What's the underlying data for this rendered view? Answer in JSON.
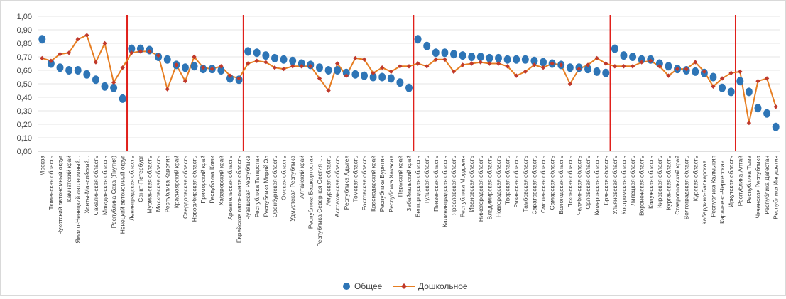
{
  "chart_data": {
    "type": "line",
    "title": "",
    "xlabel": "",
    "ylabel": "",
    "ylim": [
      0,
      1
    ],
    "yticks": [
      "0,00",
      "0,10",
      "0,20",
      "0,30",
      "0,40",
      "0,50",
      "0,60",
      "0,70",
      "0,80",
      "0,90",
      "1,00"
    ],
    "grid": true,
    "legend_position": "bottom",
    "categories": [
      "Москва",
      "Тюменская область",
      "Чукотский автономный округ",
      "Камчатский край",
      "Ямало-Ненецкий автономный...",
      "Ханты-Мансийский...",
      "Сахалинская область",
      "Магаданская область",
      "Республика Саха (Якутия)",
      "Ненецкий автономный округ",
      "Ленинградская область",
      "Санкт-Петербург",
      "Мурманская область",
      "Московская область",
      "Республика Карелия",
      "Красноярский край",
      "Свердловская область",
      "Новосибирская область",
      "Приморский край",
      "Республика Коми",
      "Хабаровский край",
      "Архангельская область",
      "Еврейская автономная область",
      "Чувашская Республика",
      "Республика Татарстан",
      "Республика Марий Эл",
      "Оренбургская область",
      "Омская область",
      "Удмуртская Республика",
      "Алтайский край",
      "Республика Башкортостан",
      "Республика Северная Осетия -...",
      "Амурская область",
      "Астраханская область",
      "Республика Адыгея",
      "Томская область",
      "Ростовская область",
      "Краснодарский край",
      "Республика Бурятия",
      "Республика Хакасия",
      "Пермский край",
      "Забайкальский край",
      "Белгородская область",
      "Тульская область",
      "Пензенская область",
      "Калининградская область",
      "Ярославская область",
      "Республика Мордовия",
      "Ивановская область",
      "Нижегородская область",
      "Владимирская область",
      "Новгородская область",
      "Тверская область",
      "Рязанская область",
      "Тамбовская область",
      "Саратовская область",
      "Смоленская область",
      "Самарская область",
      "Вологодская область",
      "Псковская область",
      "Челябинская область",
      "Орловская область",
      "Кемеровская область",
      "Брянская область",
      "Ульяновская область",
      "Костромская область",
      "Липецкая область",
      "Воронежская область",
      "Калужская область",
      "Кировская область",
      "Курганская область",
      "Ставропольский край",
      "Волгоградская область",
      "Курская область",
      "Кабардино-Балкарская...",
      "Республика Калмыкия",
      "Карачаево-Черкесская...",
      "Иркутская область",
      "Республика Алтай",
      "Республика Тыва",
      "Чеченская Республика",
      "Республика Дагестан",
      "Республика Ингушетия"
    ],
    "series": [
      {
        "name": "Общее",
        "marker": "circle",
        "color": "#2e75b6",
        "values": [
          0.83,
          0.65,
          0.62,
          0.6,
          0.6,
          0.57,
          0.53,
          0.48,
          0.47,
          0.39,
          0.76,
          0.76,
          0.75,
          0.7,
          0.68,
          0.64,
          0.62,
          0.63,
          0.61,
          0.61,
          0.6,
          0.54,
          0.53,
          0.74,
          0.73,
          0.71,
          0.69,
          0.68,
          0.67,
          0.65,
          0.64,
          0.62,
          0.6,
          0.6,
          0.58,
          0.57,
          0.56,
          0.55,
          0.55,
          0.54,
          0.51,
          0.47,
          0.83,
          0.78,
          0.73,
          0.73,
          0.72,
          0.71,
          0.7,
          0.7,
          0.69,
          0.69,
          0.68,
          0.68,
          0.68,
          0.67,
          0.66,
          0.65,
          0.64,
          0.62,
          0.62,
          0.61,
          0.59,
          0.58,
          0.76,
          0.71,
          0.7,
          0.68,
          0.68,
          0.65,
          0.63,
          0.61,
          0.6,
          0.59,
          0.58,
          0.55,
          0.47,
          0.44,
          0.52,
          0.44,
          0.32,
          0.28,
          0.18
        ]
      },
      {
        "name": "Дошкольное",
        "marker": "diamond",
        "color": "#e67e22",
        "marker_color": "#c0392b",
        "values": [
          0.69,
          0.67,
          0.72,
          0.73,
          0.83,
          0.86,
          0.66,
          0.8,
          0.51,
          0.62,
          0.73,
          0.74,
          0.74,
          0.71,
          0.46,
          0.64,
          0.52,
          0.7,
          0.62,
          0.61,
          0.63,
          0.56,
          0.54,
          0.65,
          0.67,
          0.66,
          0.62,
          0.61,
          0.63,
          0.63,
          0.63,
          0.54,
          0.45,
          0.65,
          0.56,
          0.69,
          0.68,
          0.58,
          0.62,
          0.59,
          0.63,
          0.63,
          0.65,
          0.63,
          0.68,
          0.68,
          0.59,
          0.64,
          0.65,
          0.66,
          0.65,
          0.65,
          0.63,
          0.56,
          0.59,
          0.64,
          0.62,
          0.65,
          0.64,
          0.5,
          0.61,
          0.64,
          0.69,
          0.65,
          0.63,
          0.63,
          0.63,
          0.66,
          0.67,
          0.63,
          0.56,
          0.61,
          0.61,
          0.66,
          0.59,
          0.48,
          0.54,
          0.58,
          0.59,
          0.21,
          0.52,
          0.54,
          0.33
        ]
      }
    ],
    "group_dividers_after_index": [
      9,
      22,
      41,
      63,
      77
    ]
  }
}
